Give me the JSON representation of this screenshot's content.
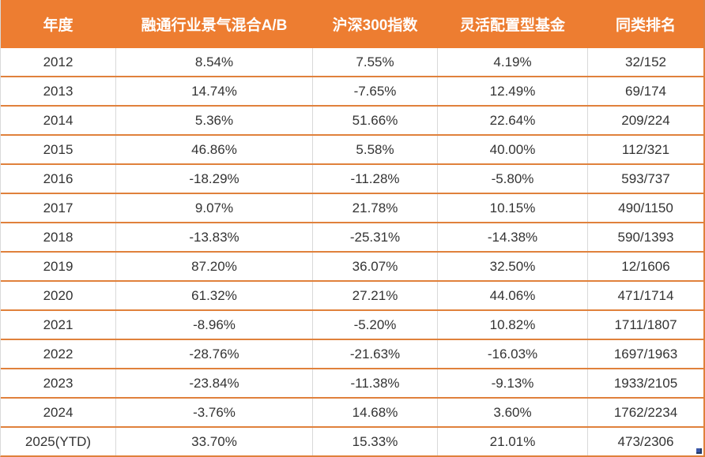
{
  "chart_data": {
    "type": "table",
    "title": "",
    "columns": [
      "年度",
      "融通行业景气混合A/B",
      "沪深300指数",
      "灵活配置型基金",
      "同类排名"
    ],
    "rows": [
      [
        "2012",
        "8.54%",
        "7.55%",
        "4.19%",
        "32/152"
      ],
      [
        "2013",
        "14.74%",
        "-7.65%",
        "12.49%",
        "69/174"
      ],
      [
        "2014",
        "5.36%",
        "51.66%",
        "22.64%",
        "209/224"
      ],
      [
        "2015",
        "46.86%",
        "5.58%",
        "40.00%",
        "112/321"
      ],
      [
        "2016",
        "-18.29%",
        "-11.28%",
        "-5.80%",
        "593/737"
      ],
      [
        "2017",
        "9.07%",
        "21.78%",
        "10.15%",
        "490/1150"
      ],
      [
        "2018",
        "-13.83%",
        "-25.31%",
        "-14.38%",
        "590/1393"
      ],
      [
        "2019",
        "87.20%",
        "36.07%",
        "32.50%",
        "12/1606"
      ],
      [
        "2020",
        "61.32%",
        "27.21%",
        "44.06%",
        "471/1714"
      ],
      [
        "2021",
        "-8.96%",
        "-5.20%",
        "10.82%",
        "1711/1807"
      ],
      [
        "2022",
        "-28.76%",
        "-21.63%",
        "-16.03%",
        "1697/1963"
      ],
      [
        "2023",
        "-23.84%",
        "-11.38%",
        "-9.13%",
        "1933/2105"
      ],
      [
        "2024",
        "-3.76%",
        "14.68%",
        "3.60%",
        "1762/2234"
      ],
      [
        "2025(YTD)",
        "33.70%",
        "15.33%",
        "21.01%",
        "473/2306"
      ]
    ],
    "layout": {
      "header_position": "top",
      "grid": "horizontal-orange, vertical-gray"
    },
    "colors": {
      "header_bg": "#ED7D31",
      "header_text": "#FFFFFF",
      "row_border": "#E0813C",
      "column_divider": "#D9D9D9",
      "cell_text": "#333333",
      "fill_handle": "#3A57A7"
    }
  }
}
